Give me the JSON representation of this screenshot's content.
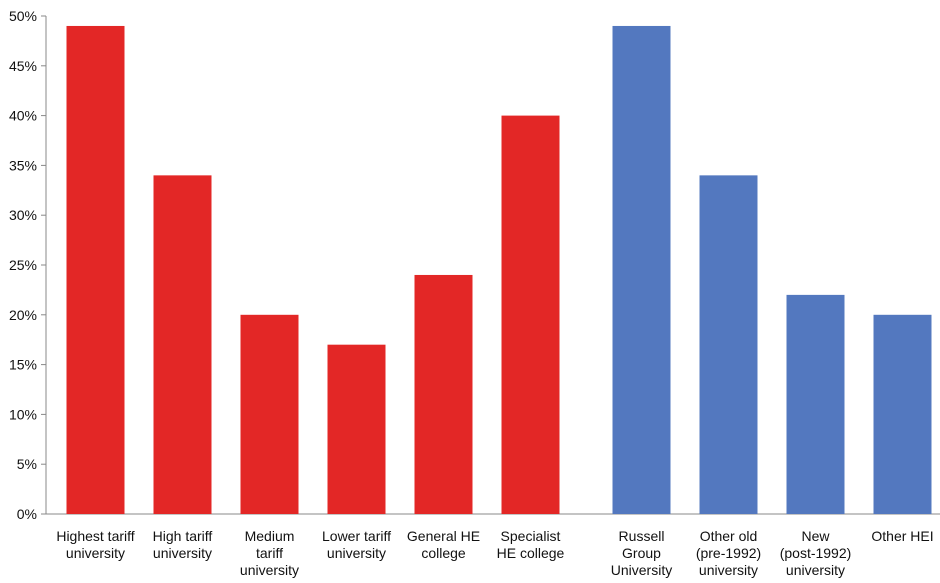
{
  "chart_data": {
    "type": "bar",
    "title": "",
    "xlabel": "",
    "ylabel": "",
    "ylim": [
      0,
      50
    ],
    "y_tick_step": 5,
    "y_tick_suffix": "%",
    "grid": false,
    "groups": [
      {
        "color": "#e32726",
        "categories": [
          "Highest tariff university",
          "High tariff university",
          "Medium tariff university",
          "Lower tariff university",
          "General HE college",
          "Specialist HE college"
        ],
        "category_lines": [
          [
            "Highest tariff",
            "university"
          ],
          [
            "High tariff",
            "university"
          ],
          [
            "Medium",
            "tariff",
            "university"
          ],
          [
            "Lower tariff",
            "university"
          ],
          [
            "General HE",
            "college"
          ],
          [
            "Specialist",
            "HE college"
          ]
        ],
        "values": [
          49,
          34,
          20,
          17,
          24,
          40
        ]
      },
      {
        "color": "#5378bf",
        "categories": [
          "Russell Group University",
          "Other old (pre-1992) university",
          "New (post-1992) university",
          "Other HEI"
        ],
        "category_lines": [
          [
            "Russell",
            "Group",
            "University"
          ],
          [
            "Other old",
            "(pre-1992)",
            "university"
          ],
          [
            "New",
            "(post-1992)",
            "university"
          ],
          [
            "Other HEI"
          ]
        ],
        "values": [
          49,
          34,
          22,
          20
        ]
      }
    ]
  }
}
